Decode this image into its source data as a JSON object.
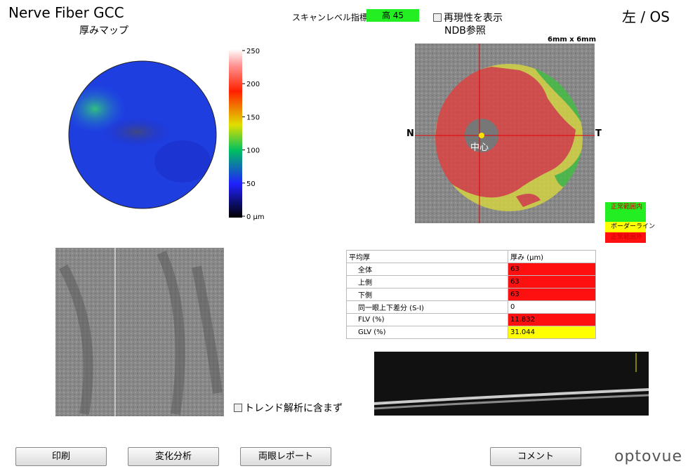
{
  "header": {
    "title": "Nerve Fiber GCC",
    "subtitle": "厚みマップ",
    "scan_quality_label": "スキャンレベル指標",
    "scan_quality_value": "高  45",
    "reproducibility_checkbox": "再現性を表示",
    "ndb_reference": "NDB参照",
    "eye": "左 / OS"
  },
  "thickness_map": {
    "colorbar_labels": [
      "250",
      "200",
      "150",
      "100",
      "50",
      "0 µm"
    ]
  },
  "fundus": {
    "size": "6mm x 6mm",
    "nasal": "N",
    "temporal": "T",
    "center": "中心"
  },
  "legend": [
    "正常範囲内",
    "ボーダーライン",
    "正常範囲外"
  ],
  "table": {
    "header": [
      "平均厚",
      "厚み (µm)"
    ],
    "rows": [
      [
        "全体",
        "63"
      ],
      [
        "上側",
        "63"
      ],
      [
        "下側",
        "63"
      ],
      [
        "同一眼上下差分 (S-I)",
        "0"
      ],
      [
        "FLV (%)",
        "11.832"
      ],
      [
        "GLV (%)",
        "31.044"
      ]
    ]
  },
  "trend_checkbox": "トレンド解析に含まず",
  "buttons": [
    "印刷",
    "変化分析",
    "両眼レポート",
    "コメント"
  ],
  "logo": "optovue"
}
